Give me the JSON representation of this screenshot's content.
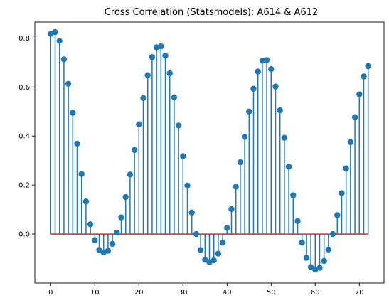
{
  "chart_data": {
    "type": "stem",
    "title": "Cross Correlation (Statsmodels): A614 & A612",
    "xlabel": "",
    "ylabel": "",
    "xlim": [
      -3.6,
      75.6
    ],
    "ylim": [
      -0.2,
      0.865
    ],
    "xticks": [
      0,
      10,
      20,
      30,
      40,
      50,
      60,
      70
    ],
    "yticks": [
      0.0,
      0.2,
      0.4,
      0.6,
      0.8
    ],
    "ytick_labels": [
      "0.0",
      "0.2",
      "0.4",
      "0.6",
      "0.8"
    ],
    "x": [
      0,
      1,
      2,
      3,
      4,
      5,
      6,
      7,
      8,
      9,
      10,
      11,
      12,
      13,
      14,
      15,
      16,
      17,
      18,
      19,
      20,
      21,
      22,
      23,
      24,
      25,
      26,
      27,
      28,
      29,
      30,
      31,
      32,
      33,
      34,
      35,
      36,
      37,
      38,
      39,
      40,
      41,
      42,
      43,
      44,
      45,
      46,
      47,
      48,
      49,
      50,
      51,
      52,
      53,
      54,
      55,
      56,
      57,
      58,
      59,
      60,
      61,
      62,
      63,
      64,
      65,
      66,
      67,
      68,
      69,
      70,
      71,
      72
    ],
    "values": [
      0.817,
      0.824,
      0.788,
      0.713,
      0.613,
      0.495,
      0.369,
      0.245,
      0.133,
      0.04,
      -0.025,
      -0.065,
      -0.075,
      -0.068,
      -0.04,
      0.006,
      0.068,
      0.151,
      0.243,
      0.343,
      0.448,
      0.555,
      0.648,
      0.722,
      0.762,
      0.766,
      0.728,
      0.656,
      0.558,
      0.443,
      0.318,
      0.198,
      0.088,
      0.0,
      -0.065,
      -0.105,
      -0.115,
      -0.107,
      -0.08,
      -0.035,
      0.025,
      0.102,
      0.193,
      0.293,
      0.397,
      0.5,
      0.593,
      0.663,
      0.707,
      0.71,
      0.673,
      0.602,
      0.505,
      0.393,
      0.275,
      0.158,
      0.053,
      -0.035,
      -0.097,
      -0.135,
      -0.145,
      -0.138,
      -0.11,
      -0.063,
      -0.0,
      0.077,
      0.167,
      0.268,
      0.375,
      0.477,
      0.57,
      0.643,
      0.685
    ],
    "colors": {
      "stem": "#1f77b4",
      "marker": "#1f77b4",
      "baseline": "#d62728"
    },
    "grid": false
  }
}
